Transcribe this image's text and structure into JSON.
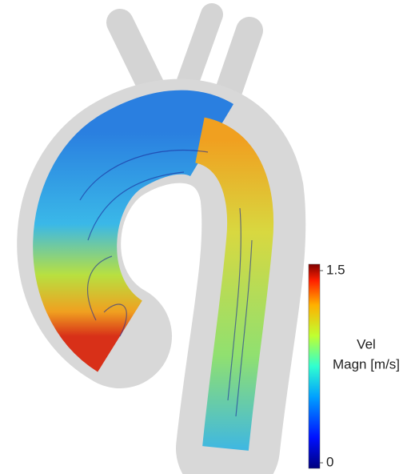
{
  "colorbar": {
    "label": [
      "Vel",
      "Magn [m/s]"
    ],
    "range": [
      0,
      1.5
    ],
    "ticks": [
      0,
      1.5
    ]
  }
}
